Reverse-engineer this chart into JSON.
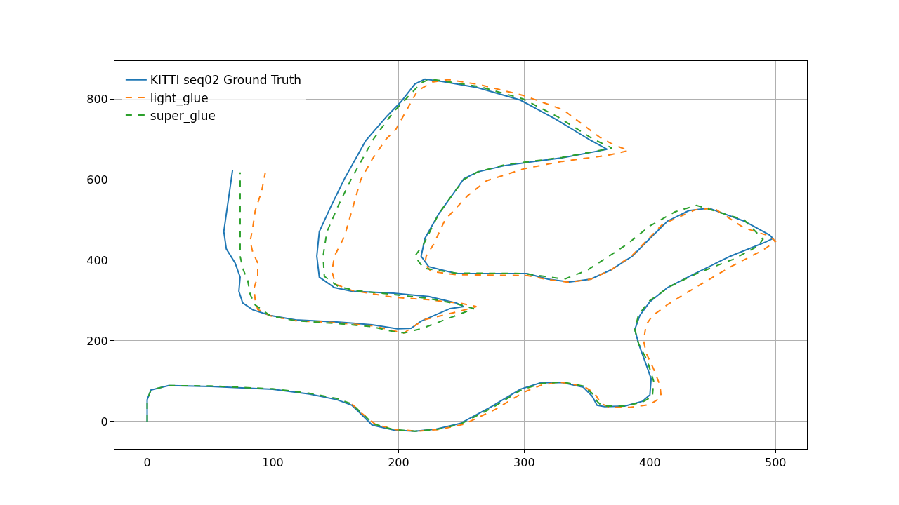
{
  "chart_data": {
    "type": "line",
    "xlim": [
      -26,
      525
    ],
    "ylim": [
      -68,
      894
    ],
    "xticks": [
      0,
      100,
      200,
      300,
      400,
      500
    ],
    "yticks": [
      0,
      200,
      400,
      600,
      800
    ],
    "grid": true,
    "legend": "top left",
    "series": [
      {
        "name": "KITTI seq02 Ground Truth",
        "color": "#1f77b4",
        "line_style": "solid",
        "x": [
          0,
          0,
          3,
          17,
          51,
          100,
          129,
          151,
          163,
          171,
          179,
          196,
          213,
          230,
          249,
          274,
          297,
          313,
          330,
          347,
          354,
          358,
          364,
          380,
          394,
          400,
          401,
          396,
          391,
          388,
          392,
          400,
          414,
          436,
          464,
          492,
          498,
          495,
          475,
          447,
          431,
          414,
          400,
          386,
          369,
          353,
          336,
          319,
          302,
          274,
          246,
          224,
          218,
          221,
          232,
          244,
          252,
          263,
          285,
          330,
          366,
          353,
          325,
          297,
          263,
          235,
          221,
          213,
          202,
          191,
          174,
          157,
          146,
          137,
          135,
          137,
          149,
          163,
          196,
          224,
          246,
          252,
          241,
          218,
          210,
          199,
          179,
          151,
          118,
          98,
          84,
          76,
          73,
          74,
          70,
          63,
          61,
          63,
          65,
          68
        ],
        "values": [
          0,
          54,
          78,
          89,
          87,
          80,
          68,
          54,
          40,
          16,
          -9,
          -21,
          -24,
          -19,
          -5,
          37,
          80,
          96,
          97,
          85,
          63,
          40,
          37,
          38,
          50,
          66,
          106,
          150,
          193,
          228,
          263,
          297,
          332,
          367,
          410,
          445,
          454,
          463,
          497,
          529,
          523,
          497,
          454,
          410,
          376,
          353,
          346,
          353,
          367,
          367,
          367,
          384,
          410,
          454,
          515,
          567,
          602,
          619,
          635,
          654,
          675,
          697,
          750,
          797,
          828,
          843,
          849,
          837,
          793,
          758,
          697,
          602,
          532,
          471,
          410,
          358,
          332,
          323,
          318,
          310,
          294,
          285,
          280,
          249,
          231,
          230,
          240,
          247,
          252,
          263,
          277,
          294,
          323,
          358,
          393,
          428,
          471,
          515,
          558,
          624
        ]
      },
      {
        "name": "light_glue",
        "color": "#ff7f0e",
        "line_style": "dashed",
        "x": [
          163,
          171,
          182,
          198,
          215,
          232,
          252,
          277,
          300,
          315,
          330,
          347,
          356,
          361,
          368,
          384,
          400,
          409,
          408,
          403,
          397,
          395,
          397,
          402,
          414,
          435,
          465,
          490,
          500,
          495,
          475,
          451,
          436,
          410,
          386,
          369,
          353,
          336,
          319,
          302,
          274,
          246,
          226,
          221,
          222,
          228,
          237,
          255,
          270,
          300,
          330,
          366,
          383,
          370,
          360,
          331,
          300,
          265,
          240,
          227,
          215,
          198,
          190,
          179,
          170,
          157,
          149,
          147,
          150,
          163,
          196,
          224,
          250,
          262,
          248,
          220,
          204,
          180,
          151,
          118,
          98,
          88,
          86,
          85,
          88,
          88,
          84,
          82,
          84,
          86,
          91,
          94
        ],
        "values": [
          43,
          20,
          -8,
          -20,
          -24,
          -20,
          -7,
          30,
          73,
          92,
          97,
          88,
          70,
          45,
          35,
          35,
          42,
          60,
          90,
          130,
          170,
          200,
          240,
          262,
          290,
          330,
          385,
          425,
          447,
          460,
          480,
          529,
          525,
          489,
          412,
          376,
          353,
          345,
          352,
          362,
          363,
          364,
          372,
          390,
          410,
          440,
          500,
          560,
          597,
          627,
          645,
          660,
          672,
          688,
          705,
          773,
          808,
          835,
          848,
          842,
          820,
          725,
          700,
          650,
          600,
          459,
          410,
          372,
          340,
          325,
          308,
          302,
          293,
          285,
          273,
          252,
          219,
          237,
          245,
          250,
          262,
          278,
          300,
          330,
          360,
          393,
          420,
          447,
          480,
          523,
          570,
          617
        ]
      },
      {
        "name": "super_glue",
        "color": "#2ca02c",
        "line_style": "dashed",
        "x": [
          0,
          0,
          3,
          17,
          51,
          100,
          129,
          151,
          163,
          171,
          180,
          196,
          213,
          230,
          249,
          274,
          297,
          313,
          330,
          347,
          354,
          358,
          362,
          380,
          394,
          402,
          403,
          398,
          391,
          388,
          391,
          400,
          416,
          438,
          466,
          486,
          490,
          475,
          437,
          420,
          400,
          382,
          364,
          350,
          332,
          300,
          246,
          220,
          213,
          220,
          232,
          244,
          252,
          263,
          285,
          330,
          370,
          355,
          327,
          299,
          265,
          235,
          225,
          218,
          206,
          196,
          180,
          163,
          152,
          143,
          140,
          141,
          152,
          165,
          196,
          224,
          246,
          260,
          240,
          218,
          205,
          199,
          179,
          151,
          118,
          98,
          86,
          82,
          80,
          76,
          74,
          74,
          74,
          74,
          74
        ],
        "values": [
          0,
          54,
          78,
          89,
          88,
          81,
          70,
          57,
          43,
          20,
          -6,
          -20,
          -24,
          -20,
          -7,
          33,
          77,
          94,
          98,
          88,
          70,
          50,
          38,
          38,
          48,
          62,
          100,
          150,
          193,
          228,
          265,
          300,
          335,
          368,
          402,
          435,
          452,
          500,
          536,
          520,
          485,
          440,
          403,
          375,
          353,
          367,
          368,
          380,
          410,
          440,
          515,
          567,
          600,
          619,
          637,
          655,
          678,
          700,
          755,
          800,
          830,
          845,
          849,
          840,
          800,
          768,
          700,
          605,
          535,
          470,
          410,
          360,
          335,
          325,
          315,
          305,
          292,
          280,
          256,
          230,
          220,
          221,
          235,
          243,
          250,
          262,
          289,
          315,
          350,
          380,
          410,
          450,
          500,
          560,
          618
        ]
      }
    ]
  }
}
